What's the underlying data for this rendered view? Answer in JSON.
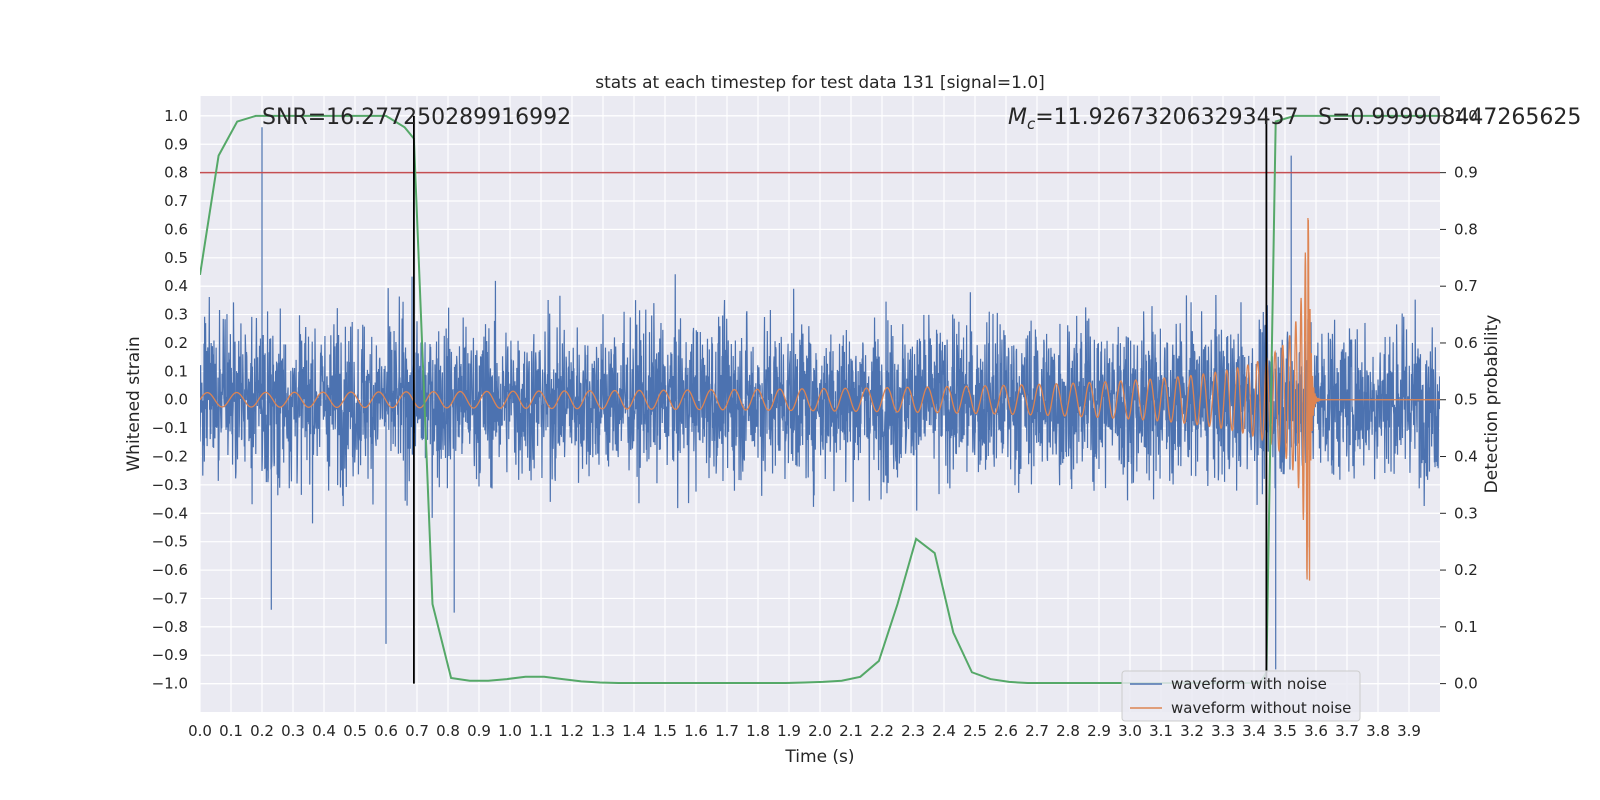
{
  "chart_data": {
    "type": "line",
    "title": "stats at each timestep for test data 131 [signal=1.0]",
    "xlabel": "Time (s)",
    "ylabel": "Whitened strain",
    "y2label": "Detection probability",
    "xlim": [
      0.0,
      4.0
    ],
    "ylim": [
      -1.1,
      1.07
    ],
    "y2lim": [
      -0.05,
      1.035
    ],
    "xticks": [
      "0.0",
      "0.1",
      "0.2",
      "0.3",
      "0.4",
      "0.5",
      "0.6",
      "0.7",
      "0.8",
      "0.9",
      "1.0",
      "1.1",
      "1.2",
      "1.3",
      "1.4",
      "1.5",
      "1.6",
      "1.7",
      "1.8",
      "1.9",
      "2.0",
      "2.1",
      "2.2",
      "2.3",
      "2.4",
      "2.5",
      "2.6",
      "2.7",
      "2.8",
      "2.9",
      "3.0",
      "3.1",
      "3.2",
      "3.3",
      "3.4",
      "3.5",
      "3.6",
      "3.7",
      "3.8",
      "3.9"
    ],
    "yticks": [
      "1.0",
      "0.9",
      "0.8",
      "0.7",
      "0.6",
      "0.5",
      "0.4",
      "0.3",
      "0.2",
      "0.1",
      "0.0",
      "-0.1",
      "-0.2",
      "-0.3",
      "-0.4",
      "-0.5",
      "-0.6",
      "-0.7",
      "-0.8",
      "-0.9",
      "-1.0"
    ],
    "y2ticks": [
      "1.0",
      "0.9",
      "0.8",
      "0.7",
      "0.6",
      "0.5",
      "0.4",
      "0.3",
      "0.2",
      "0.1",
      "0.0"
    ],
    "grid": true,
    "legend_placement": "lower-right",
    "annotations": {
      "snr": "SNR=16.277250289916992",
      "mc_symbol": "M",
      "mc_sub": "c",
      "mc_value": "=11.926732063293457",
      "s": "S=0.999908447265625"
    },
    "threshold": {
      "axis": "y2",
      "value": 0.9,
      "color": "#c44e52"
    },
    "vlines": [
      0.69,
      3.44
    ],
    "series": [
      {
        "name": "waveform with noise",
        "color": "#4c72b0",
        "axis": "y",
        "kind": "noise",
        "t_end": 4.0,
        "sigma": 0.25,
        "peak_pos": 0.96,
        "peak_neg": -0.95
      },
      {
        "name": "waveform without noise",
        "color": "#dd8452",
        "axis": "y",
        "kind": "chirp",
        "t_merger": 3.58,
        "amp_start": 0.025,
        "amp_peak": 0.64,
        "amp_min": -0.52
      },
      {
        "name": "",
        "color": "#55a868",
        "axis": "y2",
        "x": [
          0.0,
          0.06,
          0.12,
          0.18,
          0.24,
          0.3,
          0.36,
          0.42,
          0.48,
          0.54,
          0.6,
          0.66,
          0.69,
          0.75,
          0.81,
          0.87,
          0.93,
          0.99,
          1.05,
          1.11,
          1.17,
          1.23,
          1.29,
          1.35,
          1.41,
          1.47,
          1.53,
          1.59,
          1.65,
          1.71,
          1.77,
          1.83,
          1.89,
          1.95,
          2.01,
          2.07,
          2.13,
          2.19,
          2.25,
          2.31,
          2.37,
          2.43,
          2.49,
          2.55,
          2.61,
          2.67,
          2.73,
          2.79,
          2.85,
          2.91,
          2.97,
          3.03,
          3.09,
          3.15,
          3.21,
          3.27,
          3.33,
          3.39,
          3.42,
          3.44,
          3.47,
          3.53,
          3.59,
          3.65,
          3.71,
          3.77,
          3.83,
          3.89,
          3.95,
          4.0
        ],
        "y": [
          0.72,
          0.93,
          0.99,
          1.0,
          1.0,
          1.0,
          1.0,
          1.0,
          1.0,
          1.0,
          1.0,
          0.98,
          0.96,
          0.14,
          0.01,
          0.005,
          0.005,
          0.008,
          0.012,
          0.012,
          0.008,
          0.004,
          0.002,
          0.001,
          0.001,
          0.001,
          0.001,
          0.001,
          0.001,
          0.001,
          0.001,
          0.001,
          0.001,
          0.002,
          0.003,
          0.005,
          0.012,
          0.04,
          0.14,
          0.255,
          0.23,
          0.09,
          0.02,
          0.008,
          0.003,
          0.001,
          0.001,
          0.001,
          0.001,
          0.001,
          0.001,
          0.001,
          0.001,
          0.001,
          0.001,
          0.001,
          0.001,
          0.001,
          0.001,
          0.02,
          0.99,
          1.0,
          1.0,
          1.0,
          1.0,
          1.0,
          1.0,
          1.0,
          1.0,
          1.0
        ]
      }
    ]
  }
}
